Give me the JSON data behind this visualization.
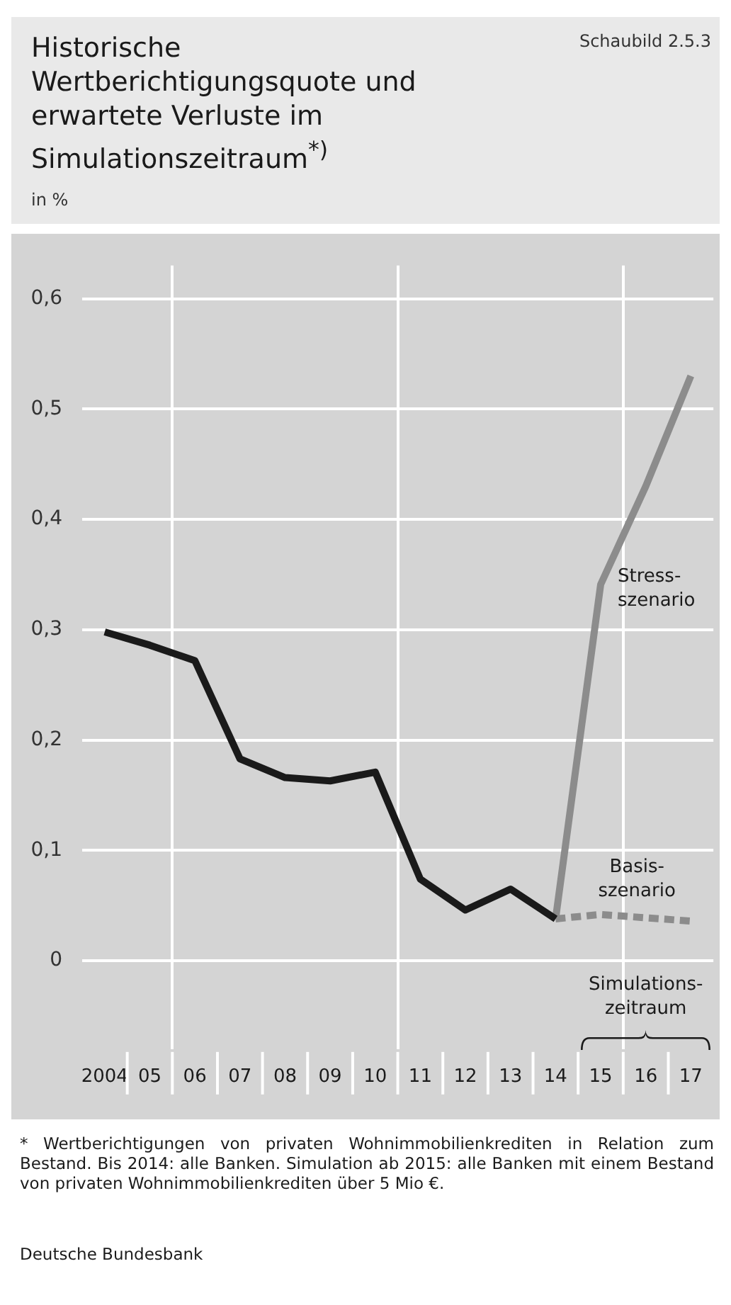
{
  "chart_data": {
    "type": "line",
    "title": "Historische Wertberichtigungsquote und erwartete Verluste im Simulationszeitraum$^{*)}$",
    "ylabel": "in %",
    "categories": [
      "2004",
      "05",
      "06",
      "07",
      "08",
      "09",
      "10",
      "11",
      "12",
      "13",
      "14",
      "15",
      "16",
      "17"
    ],
    "series": [
      {
        "color": "#1a1a1a",
        "values": [
          0.298,
          0.286,
          0.272,
          0.183,
          0.166,
          0.163,
          0.171,
          0.074,
          0.046,
          0.065,
          0.038,
          null,
          null,
          null
        ]
      },
      {
        "name": "Stress-szenario",
        "color": "#8c8c8c",
        "values": [
          null,
          null,
          null,
          null,
          null,
          null,
          null,
          null,
          null,
          null,
          0.038,
          0.341,
          0.43,
          0.53
        ]
      },
      {
        "name": "Basis-szenario",
        "color": "#8c8c8c",
        "line_style": "dashed",
        "values": [
          null,
          null,
          null,
          null,
          null,
          null,
          null,
          null,
          null,
          null,
          0.038,
          0.042,
          0.039,
          0.036
        ]
      }
    ],
    "ylim": [
      -0.08,
      0.63
    ],
    "yticks": [
      {
        "value": 0,
        "label": "0"
      },
      {
        "value": 0.1,
        "label": "0,1"
      },
      {
        "value": 0.2,
        "label": "0,2"
      },
      {
        "value": 0.3,
        "label": "0,3"
      },
      {
        "value": 0.4,
        "label": "0,4"
      },
      {
        "value": 0.5,
        "label": "0,5"
      },
      {
        "value": 0.6,
        "label": "0,6"
      }
    ],
    "grid": true,
    "legend": false,
    "marker": "none",
    "line_style": "solid",
    "annotations": [
      "Schaubild 2.5.3",
      "Simulations-zeitraum",
      "* Wertberichtigungen von privaten Wohnimmobilienkrediten in Relation zum Bestand. Bis 2014: alle Banken. Simulation ab 2015: alle Banken mit einem Bestand von privaten Wohnimmobilienkrediten über 5 Mio €.",
      "Deutsche Bundesbank"
    ]
  }
}
